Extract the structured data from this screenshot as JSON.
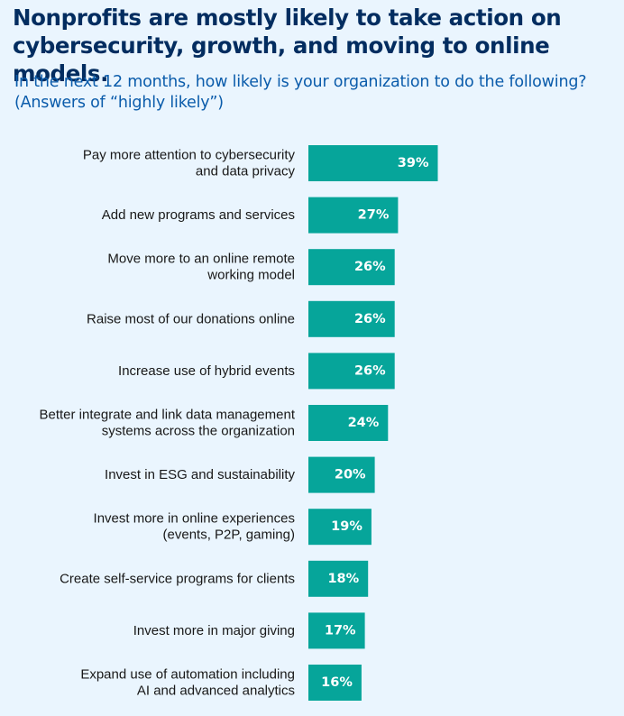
{
  "title": "Nonprofits are mostly likely to take action on cybersecurity, growth, and moving to online models.",
  "subtitle": "In the next 12 months, how likely is your organization to do the following? (Answers of “highly likely”)",
  "colors": {
    "background": "#eaf5fe",
    "bar": "#06a59a",
    "title": "#032d60",
    "subtitle": "#0b5cab",
    "label": "#181818",
    "value_text": "#ffffff"
  },
  "chart_data": {
    "type": "bar",
    "orientation": "horizontal",
    "title": "Nonprofits are mostly likely to take action on cybersecurity, growth, and moving to online models.",
    "subtitle": "In the next 12 months, how likely is your organization to do the following? (Answers of “highly likely”)",
    "unit": "%",
    "xlim": [
      0,
      100
    ],
    "grid": false,
    "legend": "none",
    "categories": [
      [
        "Pay more attention to cybersecurity",
        "and  data privacy"
      ],
      [
        "Add new programs and services"
      ],
      [
        "Move more to an online remote",
        "working model"
      ],
      [
        "Raise most of our donations online"
      ],
      [
        "Increase use of hybrid events"
      ],
      [
        "Better integrate and link data management",
        "systems across the organization"
      ],
      [
        "Invest in ESG and sustainability"
      ],
      [
        "Invest more in online experiences",
        "(events, P2P, gaming)"
      ],
      [
        "Create self-service programs for clients"
      ],
      [
        "Invest more in major giving"
      ],
      [
        "Expand use of automation including",
        "AI and advanced analytics"
      ]
    ],
    "values": [
      39,
      27,
      26,
      26,
      26,
      24,
      20,
      19,
      18,
      17,
      16
    ],
    "value_labels": [
      "39%",
      "27%",
      "26%",
      "26%",
      "26%",
      "24%",
      "20%",
      "19%",
      "18%",
      "17%",
      "16%"
    ]
  }
}
